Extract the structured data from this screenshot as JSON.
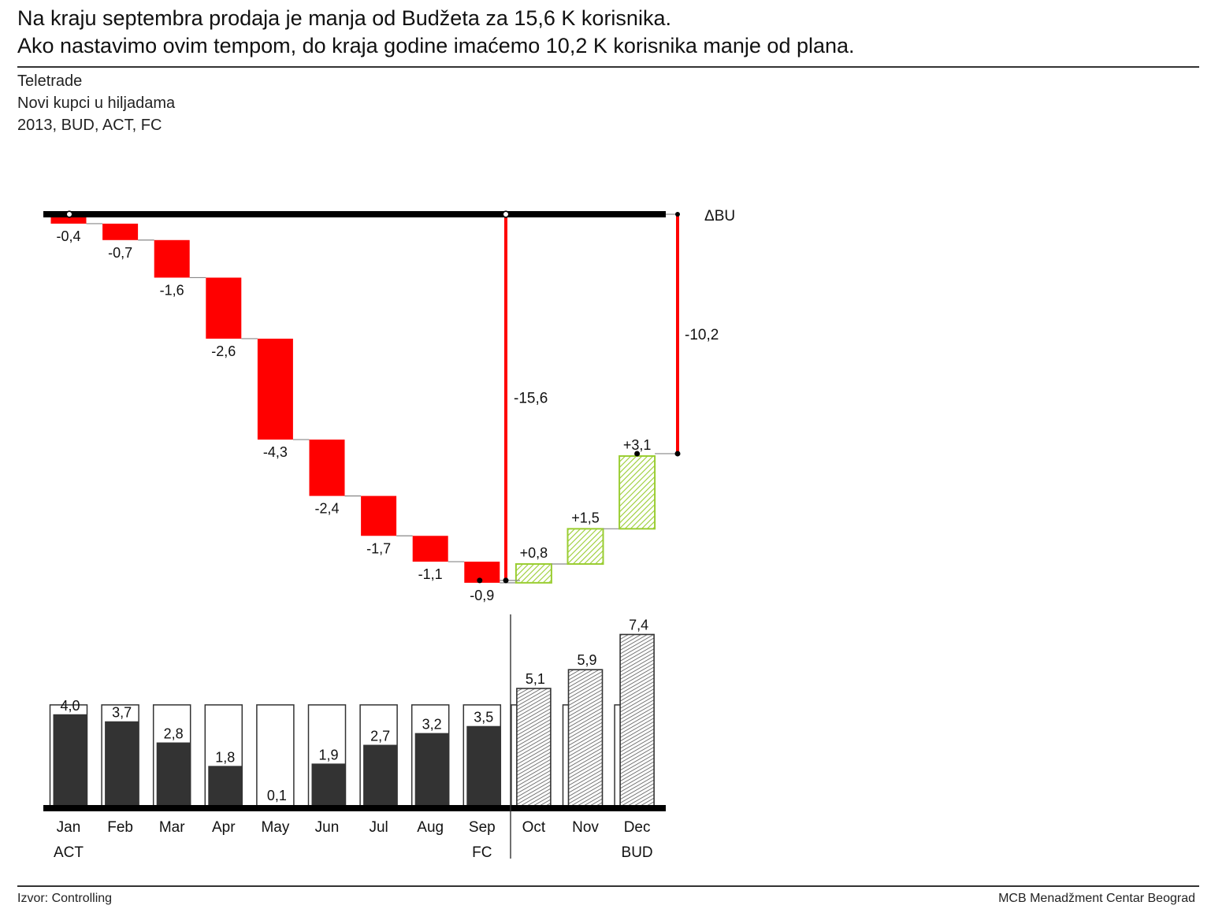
{
  "headline": {
    "line1": "Na kraju septembra prodaja je manja od Budžeta za 15,6 K korisnika.",
    "line2": "Ako nastavimo ovim tempom, do kraja godine imaćemo 10,2 K korisnika manje od plana."
  },
  "subtitle": {
    "company": "Teletrade",
    "measure": "Novi kupci u hiljadama",
    "scenario": "2013, BUD, ACT, FC"
  },
  "footer": {
    "source": "Izvor: Controlling",
    "org": "MCB Menadžment Centar Beograd"
  },
  "colors": {
    "negative": "#ff0000",
    "positive_hatch": "#9acd32",
    "actual": "#333333",
    "forecast_hatch": "#555555"
  },
  "chart_data": [
    {
      "type": "waterfall",
      "categories": [
        "Jan",
        "Feb",
        "Mar",
        "Apr",
        "May",
        "Jun",
        "Jul",
        "Aug",
        "Sep",
        "Oct",
        "Nov",
        "Dec"
      ],
      "values": [
        -0.4,
        -0.7,
        -1.6,
        -2.6,
        -4.3,
        -2.4,
        -1.7,
        -1.1,
        -0.9,
        0.8,
        1.5,
        3.1
      ],
      "labels": [
        "-0,4",
        "-0,7",
        "-1,6",
        "-2,6",
        "-4,3",
        "-2,4",
        "-1,7",
        "-1,1",
        "-0,9",
        "+0,8",
        "+1,5",
        "+3,1"
      ],
      "legend_label": "ΔBU",
      "cumulative_sep": -15.6,
      "cumulative_sep_label": "-15,6",
      "cumulative_dec": -10.2,
      "cumulative_dec_label": "-10,2"
    },
    {
      "type": "bar",
      "categories": [
        "Jan",
        "Feb",
        "Mar",
        "Apr",
        "May",
        "Jun",
        "Jul",
        "Aug",
        "Sep",
        "Oct",
        "Nov",
        "Dec"
      ],
      "values": [
        4.0,
        3.7,
        2.8,
        1.8,
        0.1,
        1.9,
        2.7,
        3.2,
        3.5,
        5.1,
        5.9,
        7.4
      ],
      "labels": [
        "4,0",
        "3,7",
        "2,8",
        "1,8",
        "0,1",
        "1,9",
        "2,7",
        "3,2",
        "3,5",
        "5,1",
        "5,9",
        "7,4"
      ],
      "budget": 4.4,
      "actual_months": 9,
      "group_labels": {
        "actual": "ACT",
        "forecast": "FC",
        "budget": "BUD"
      }
    }
  ]
}
